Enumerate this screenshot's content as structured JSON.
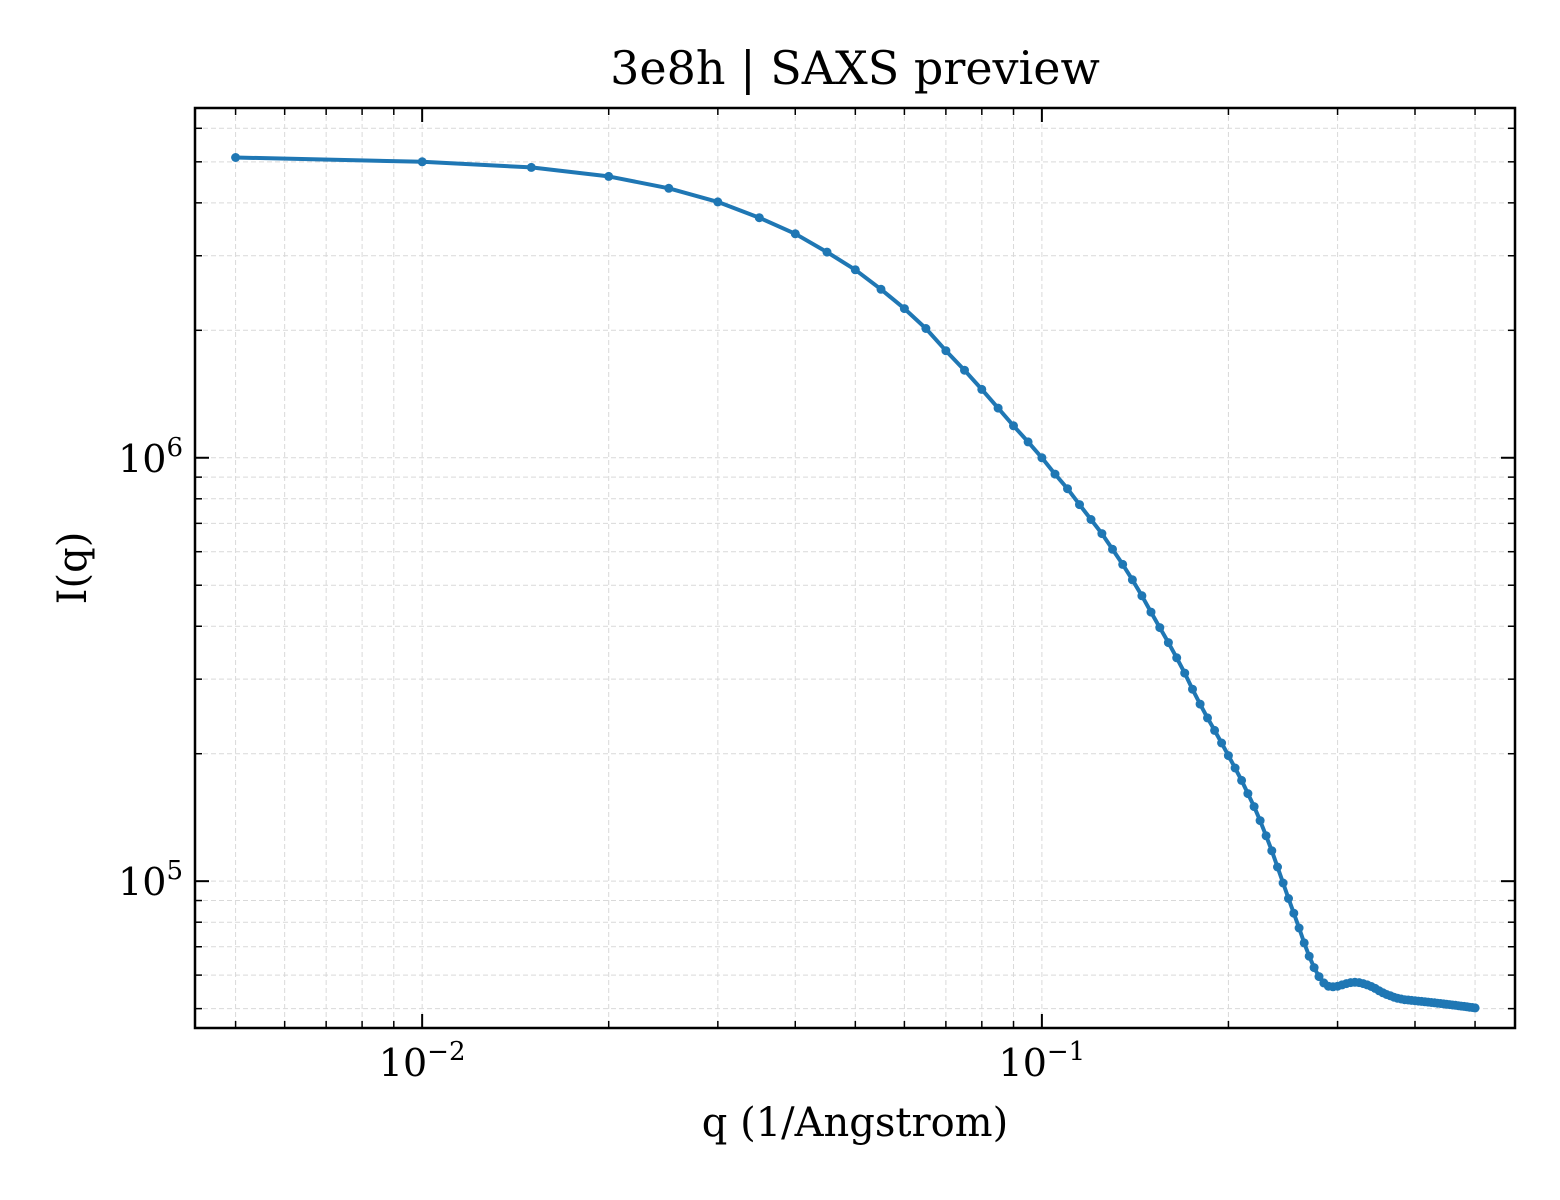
{
  "chart_data": {
    "type": "line",
    "title": "3e8h | SAXS preview",
    "xlabel": "q (1/Angstrom)",
    "ylabel": "I(q)",
    "xscale": "log",
    "yscale": "log",
    "xlim": [
      0.0043,
      0.58
    ],
    "ylim": [
      45000,
      6700000
    ],
    "x_tick_labels": [
      {
        "value": 0.01,
        "base": "10",
        "exp": "−2"
      },
      {
        "value": 0.1,
        "base": "10",
        "exp": "−1"
      }
    ],
    "y_tick_labels": [
      {
        "value": 100000,
        "base": "10",
        "exp": "5"
      },
      {
        "value": 1000000,
        "base": "10",
        "exp": "6"
      }
    ],
    "grid": true,
    "legend": "none",
    "colors": {
      "series": "#1f77b4",
      "grid": "#d9d9d9",
      "axes": "#000000"
    },
    "series": [
      {
        "marker": "circle",
        "x": [
          0.005,
          0.01,
          0.015,
          0.02,
          0.025,
          0.03,
          0.035,
          0.04,
          0.045,
          0.05,
          0.055,
          0.06,
          0.065,
          0.07,
          0.075,
          0.08,
          0.085,
          0.09,
          0.095,
          0.1,
          0.105,
          0.11,
          0.115,
          0.12,
          0.125,
          0.13,
          0.135,
          0.14,
          0.145,
          0.15,
          0.155,
          0.16,
          0.165,
          0.17,
          0.175,
          0.18,
          0.185,
          0.19,
          0.195,
          0.2,
          0.205,
          0.21,
          0.215,
          0.22,
          0.225,
          0.23,
          0.235,
          0.24,
          0.245,
          0.25,
          0.255,
          0.26,
          0.265,
          0.27,
          0.275,
          0.28,
          0.285,
          0.29,
          0.295,
          0.3,
          0.305,
          0.31,
          0.315,
          0.32,
          0.325,
          0.33,
          0.335,
          0.34,
          0.345,
          0.35,
          0.355,
          0.36,
          0.365,
          0.37,
          0.375,
          0.38,
          0.385,
          0.39,
          0.395,
          0.4,
          0.405,
          0.41,
          0.415,
          0.42,
          0.425,
          0.43,
          0.435,
          0.44,
          0.445,
          0.45,
          0.455,
          0.46,
          0.465,
          0.47,
          0.475,
          0.48,
          0.485,
          0.49,
          0.495,
          0.5
        ],
        "y": [
          5120000,
          5000000,
          4850000,
          4620000,
          4330000,
          4020000,
          3690000,
          3380000,
          3060000,
          2780000,
          2500000,
          2250000,
          2020000,
          1790000,
          1610000,
          1450000,
          1310000,
          1190000,
          1090000,
          1000000,
          915000,
          845000,
          775000,
          715000,
          662000,
          608000,
          560000,
          515000,
          472000,
          432000,
          397000,
          366000,
          337000,
          310000,
          284000,
          262000,
          243000,
          227000,
          212000,
          198000,
          185000,
          173000,
          161000,
          150000,
          139000,
          128000,
          118000,
          108000,
          99000,
          91000,
          84000,
          77500,
          71500,
          66500,
          62500,
          59500,
          57500,
          56500,
          56300,
          56500,
          56900,
          57300,
          57600,
          57700,
          57600,
          57300,
          56900,
          56400,
          55800,
          55100,
          54500,
          54000,
          53600,
          53200,
          52900,
          52700,
          52500,
          52400,
          52300,
          52200,
          52100,
          52000,
          51900,
          51800,
          51700,
          51600,
          51500,
          51400,
          51300,
          51200,
          51100,
          51000,
          50900,
          50800,
          50700,
          50600,
          50500,
          50400,
          50300,
          50200
        ]
      }
    ]
  }
}
